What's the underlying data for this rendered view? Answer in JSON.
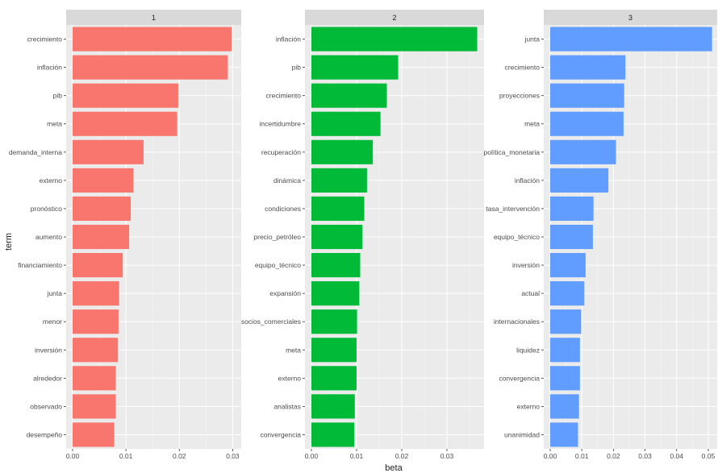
{
  "chart_data": {
    "type": "bar",
    "orientation": "horizontal",
    "faceted": true,
    "xlabel": "beta",
    "ylabel": "term",
    "grid": true,
    "legend": "none",
    "colors": [
      "#F8766D",
      "#00BA38",
      "#619CFF"
    ],
    "panels": [
      {
        "title": "1",
        "xlim": [
          0,
          0.031
        ],
        "ticks": [
          "0.00",
          "0.01",
          "0.02",
          "0.03"
        ],
        "tick_values": [
          0,
          0.01,
          0.02,
          0.03
        ],
        "terms": [
          "crecimiento",
          "inflación",
          "pib",
          "meta",
          "demanda_interna",
          "externo",
          "pronóstico",
          "aumento",
          "financiamiento",
          "junta",
          "menor",
          "inversión",
          "alrededor",
          "observado",
          "desempeño"
        ],
        "values": [
          0.0298,
          0.0291,
          0.0198,
          0.0196,
          0.0133,
          0.0114,
          0.0109,
          0.0106,
          0.0094,
          0.0087,
          0.0086,
          0.0085,
          0.0081,
          0.0081,
          0.0078
        ]
      },
      {
        "title": "2",
        "xlim": [
          0,
          0.0375
        ],
        "ticks": [
          "0.00",
          "0.01",
          "0.02",
          "0.03"
        ],
        "tick_values": [
          0,
          0.01,
          0.02,
          0.03
        ],
        "terms": [
          "inflación",
          "pib",
          "crecimiento",
          "incertidumbre",
          "recuperación",
          "dinámica",
          "condiciones",
          "precio_petróleo",
          "equipo_técnico",
          "expansión",
          "socios_comerciales",
          "meta",
          "externo",
          "analistas",
          "convergencia"
        ],
        "values": [
          0.0367,
          0.0192,
          0.0167,
          0.0153,
          0.0136,
          0.0123,
          0.0117,
          0.0113,
          0.0108,
          0.0106,
          0.0101,
          0.01,
          0.01,
          0.0096,
          0.0095
        ]
      },
      {
        "title": "3",
        "xlim": [
          0,
          0.0518
        ],
        "ticks": [
          "0.00",
          "0.01",
          "0.02",
          "0.03",
          "0.04",
          "0.05"
        ],
        "tick_values": [
          0,
          0.01,
          0.02,
          0.03,
          0.04,
          0.05
        ],
        "terms": [
          "junta",
          "crecimiento",
          "proyecciones",
          "meta",
          "política_monetaria",
          "inflación",
          "tasa_intervención",
          "equipo_técnico",
          "inversión",
          "actual",
          "internacionales",
          "liquidez",
          "convergencia",
          "externo",
          "unanimidad"
        ],
        "values": [
          0.0512,
          0.0238,
          0.0234,
          0.0232,
          0.0208,
          0.0184,
          0.0137,
          0.0135,
          0.0112,
          0.0108,
          0.0098,
          0.0094,
          0.0094,
          0.0091,
          0.0088
        ]
      }
    ]
  }
}
